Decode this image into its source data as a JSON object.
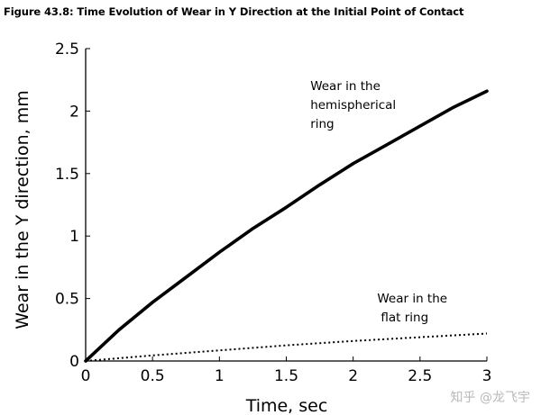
{
  "figure_title": "Figure 43.8: Time Evolution of Wear in Y Direction at the Initial Point of Contact",
  "watermark": "知乎 @龙飞宇",
  "chart_data": {
    "type": "line",
    "title": "",
    "xlabel": "Time, sec",
    "ylabel": "Wear in the Y direction, mm",
    "xlim": [
      0,
      3
    ],
    "ylim": [
      0,
      2.5
    ],
    "xticks": [
      "0",
      "0.5",
      "1",
      "1.5",
      "2",
      "2.5",
      "3"
    ],
    "yticks": [
      "0",
      "0.5",
      "1",
      "1.5",
      "2",
      "2.5"
    ],
    "grid": false,
    "legend": "none",
    "series": [
      {
        "name": "",
        "style": "solid-thick",
        "color": "#000000",
        "x": [
          0,
          0.25,
          0.5,
          0.75,
          1,
          1.25,
          1.5,
          1.75,
          2,
          2.25,
          2.5,
          2.75,
          3
        ],
        "y": [
          0,
          0.25,
          0.47,
          0.67,
          0.87,
          1.06,
          1.23,
          1.41,
          1.58,
          1.73,
          1.88,
          2.03,
          2.16
        ]
      },
      {
        "name": "",
        "style": "dotted",
        "color": "#000000",
        "x": [
          0,
          0.5,
          1,
          1.5,
          2,
          2.5,
          3
        ],
        "y": [
          0,
          0.045,
          0.085,
          0.125,
          0.16,
          0.19,
          0.22
        ]
      }
    ],
    "annotations": [
      {
        "lines": [
          "Wear in the",
          "hemispherical",
          "ring"
        ],
        "x": 1.68,
        "y": 2.17
      },
      {
        "lines": [
          "Wear in the",
          "flat ring"
        ],
        "x": 2.18,
        "y": 0.47
      }
    ]
  }
}
